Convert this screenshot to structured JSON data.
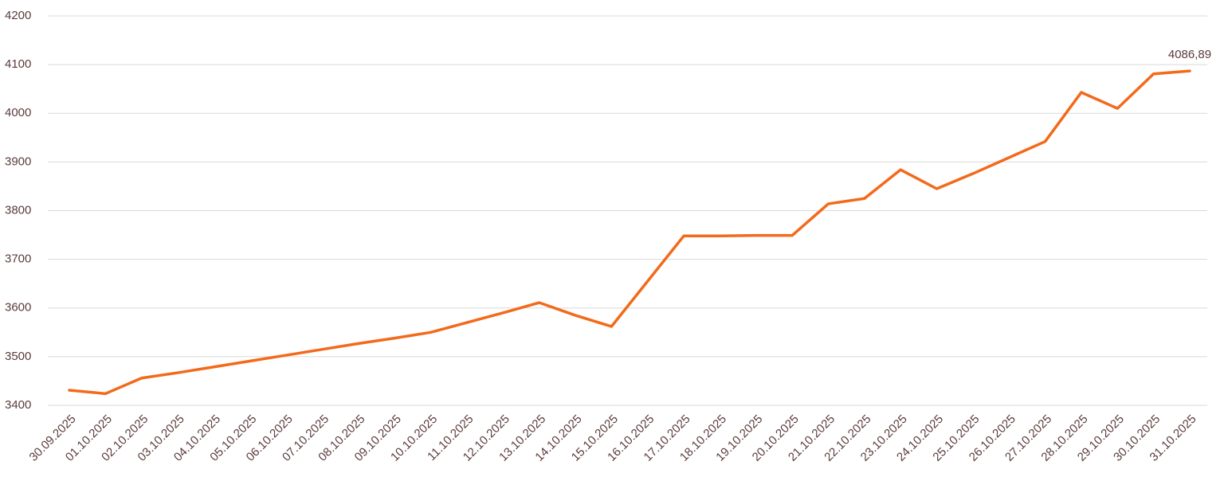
{
  "chart_data": {
    "type": "line",
    "categories": [
      "30.09.2025",
      "01.10.2025",
      "02.10.2025",
      "03.10.2025",
      "04.10.2025",
      "05.10.2025",
      "06.10.2025",
      "07.10.2025",
      "08.10.2025",
      "09.10.2025",
      "10.10.2025",
      "11.10.2025",
      "12.10.2025",
      "13.10.2025",
      "14.10.2025",
      "15.10.2025",
      "16.10.2025",
      "17.10.2025",
      "18.10.2025",
      "19.10.2025",
      "20.10.2025",
      "21.10.2025",
      "22.10.2025",
      "23.10.2025",
      "24.10.2025",
      "25.10.2025",
      "26.10.2025",
      "27.10.2025",
      "28.10.2025",
      "29.10.2025",
      "30.10.2025",
      "31.10.2025"
    ],
    "values": [
      3431,
      3424,
      3456,
      3467,
      3479,
      3491,
      3503,
      3515,
      3527,
      3538,
      3550,
      3570,
      3590,
      3611,
      3585,
      3562,
      3655,
      3748,
      3748,
      3749,
      3749,
      3814,
      3825,
      3884,
      3845,
      3876,
      3909,
      3942,
      4043,
      4010,
      4081,
      4086.89
    ],
    "value_labels": [
      null,
      null,
      null,
      null,
      null,
      null,
      null,
      null,
      null,
      null,
      null,
      null,
      null,
      null,
      null,
      null,
      null,
      null,
      null,
      null,
      null,
      null,
      null,
      null,
      null,
      null,
      null,
      null,
      null,
      null,
      null,
      "4086,89"
    ],
    "color": "#f26a1b",
    "ylim": [
      3400,
      4200
    ],
    "yticks": [
      3400,
      3500,
      3600,
      3700,
      3800,
      3900,
      4000,
      4100,
      4200
    ],
    "grid": true
  }
}
